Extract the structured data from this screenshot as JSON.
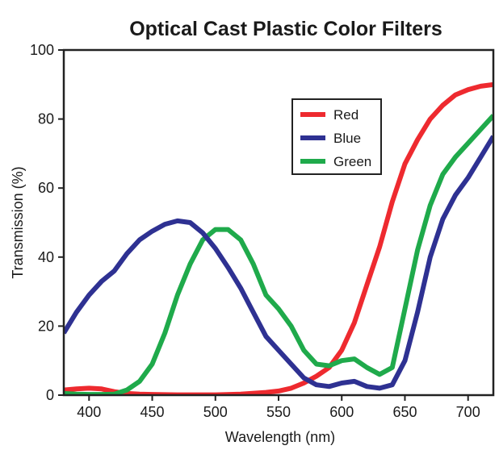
{
  "chart_data": {
    "type": "line",
    "title": "Optical Cast Plastic Color Filters",
    "xlabel": "Wavelength (nm)",
    "ylabel": "Transmission (%)",
    "xlim": [
      380,
      720
    ],
    "ylim": [
      0,
      100
    ],
    "xticks": [
      400,
      450,
      500,
      550,
      600,
      650,
      700
    ],
    "yticks": [
      0,
      20,
      40,
      60,
      80,
      100
    ],
    "grid": false,
    "legend_position": "top-right",
    "series": [
      {
        "name": "Red",
        "color": "#ee2a2f",
        "points": [
          [
            380,
            1.5
          ],
          [
            390,
            1.8
          ],
          [
            400,
            2
          ],
          [
            410,
            1.8
          ],
          [
            420,
            1
          ],
          [
            430,
            0.5
          ],
          [
            440,
            0.3
          ],
          [
            450,
            0.2
          ],
          [
            470,
            0.1
          ],
          [
            500,
            0.1
          ],
          [
            520,
            0.3
          ],
          [
            540,
            0.8
          ],
          [
            550,
            1.2
          ],
          [
            560,
            2
          ],
          [
            570,
            3.5
          ],
          [
            580,
            5.5
          ],
          [
            590,
            8
          ],
          [
            600,
            13
          ],
          [
            610,
            21
          ],
          [
            620,
            32
          ],
          [
            630,
            43
          ],
          [
            640,
            56
          ],
          [
            650,
            67
          ],
          [
            660,
            74
          ],
          [
            670,
            80
          ],
          [
            680,
            84
          ],
          [
            690,
            87
          ],
          [
            700,
            88.5
          ],
          [
            710,
            89.5
          ],
          [
            720,
            90
          ]
        ]
      },
      {
        "name": "Blue",
        "color": "#2e3192",
        "points": [
          [
            380,
            18
          ],
          [
            390,
            24
          ],
          [
            400,
            29
          ],
          [
            410,
            33
          ],
          [
            420,
            36
          ],
          [
            430,
            41
          ],
          [
            440,
            45
          ],
          [
            450,
            47.5
          ],
          [
            460,
            49.5
          ],
          [
            470,
            50.5
          ],
          [
            480,
            50
          ],
          [
            490,
            47
          ],
          [
            500,
            42.5
          ],
          [
            510,
            37
          ],
          [
            520,
            31
          ],
          [
            530,
            24
          ],
          [
            540,
            17
          ],
          [
            550,
            13
          ],
          [
            560,
            9
          ],
          [
            570,
            5
          ],
          [
            580,
            3
          ],
          [
            590,
            2.5
          ],
          [
            600,
            3.5
          ],
          [
            610,
            4
          ],
          [
            620,
            2.5
          ],
          [
            630,
            2
          ],
          [
            640,
            3
          ],
          [
            650,
            10
          ],
          [
            660,
            24
          ],
          [
            670,
            40
          ],
          [
            680,
            51
          ],
          [
            690,
            58
          ],
          [
            700,
            63
          ],
          [
            710,
            69
          ],
          [
            720,
            75
          ]
        ]
      },
      {
        "name": "Green",
        "color": "#1faa4b",
        "points": [
          [
            380,
            0.5
          ],
          [
            390,
            0.3
          ],
          [
            400,
            0.2
          ],
          [
            410,
            0.2
          ],
          [
            420,
            0.3
          ],
          [
            430,
            1.5
          ],
          [
            440,
            4
          ],
          [
            450,
            9
          ],
          [
            460,
            18
          ],
          [
            470,
            29
          ],
          [
            480,
            38
          ],
          [
            490,
            45
          ],
          [
            500,
            48
          ],
          [
            510,
            48
          ],
          [
            520,
            45
          ],
          [
            530,
            38
          ],
          [
            540,
            29
          ],
          [
            550,
            25
          ],
          [
            560,
            20
          ],
          [
            570,
            13
          ],
          [
            580,
            9
          ],
          [
            590,
            8.5
          ],
          [
            600,
            10
          ],
          [
            610,
            10.5
          ],
          [
            620,
            8
          ],
          [
            630,
            6
          ],
          [
            640,
            8
          ],
          [
            650,
            25
          ],
          [
            660,
            42
          ],
          [
            670,
            55
          ],
          [
            680,
            64
          ],
          [
            690,
            69
          ],
          [
            700,
            73
          ],
          [
            710,
            77
          ],
          [
            720,
            81
          ]
        ]
      }
    ]
  }
}
